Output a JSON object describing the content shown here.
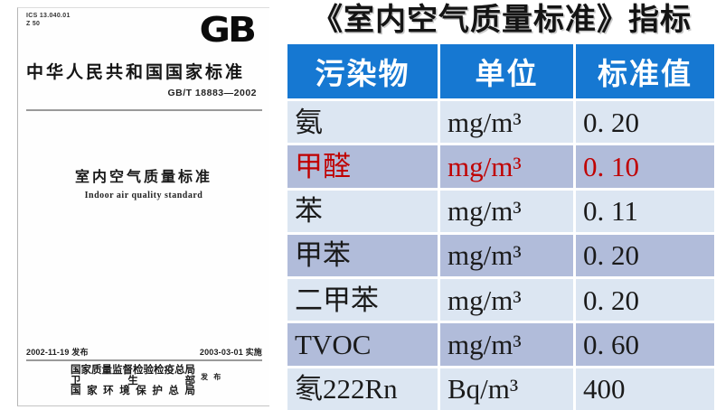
{
  "cover": {
    "ics_line1": "ICS 13.040.01",
    "ics_line2": "Z 50",
    "logo": "GB",
    "heading": "中华人民共和国国家标准",
    "standard_number": "GB/T 18883—2002",
    "title_cn": "室内空气质量标准",
    "title_en": "Indoor air quality standard",
    "issue_date": "2002-11-19 发布",
    "implement_date": "2003-03-01 实施",
    "publishers": [
      "国家质量监督检验检疫总局",
      "卫生部",
      "国家环境保护总局"
    ],
    "publish_label": "发 布"
  },
  "table": {
    "title": "《室内空气质量标准》指标",
    "headers": [
      "污染物",
      "单位",
      "标准值"
    ],
    "rows": [
      {
        "pollutant": "氨",
        "unit": "mg/m³",
        "value": "0. 20",
        "highlight": false
      },
      {
        "pollutant": "甲醛",
        "unit": "mg/m³",
        "value": "0. 10",
        "highlight": true
      },
      {
        "pollutant": "苯",
        "unit": "mg/m³",
        "value": "0. 11",
        "highlight": false
      },
      {
        "pollutant": "甲苯",
        "unit": "mg/m³",
        "value": "0. 20",
        "highlight": false
      },
      {
        "pollutant": "二甲苯",
        "unit": "mg/m³",
        "value": "0. 20",
        "highlight": false
      },
      {
        "pollutant": "TVOC",
        "unit": "mg/m³",
        "value": "0. 60",
        "highlight": false
      },
      {
        "pollutant": "氡222Rn",
        "unit": "Bq/m³",
        "value": "400",
        "highlight": false
      }
    ],
    "colors": {
      "header_bg": "#1678d2",
      "header_text": "#ffffff",
      "row_light": "#dce6f2",
      "row_dark": "#b1bcda",
      "highlight_text": "#c00000"
    }
  }
}
